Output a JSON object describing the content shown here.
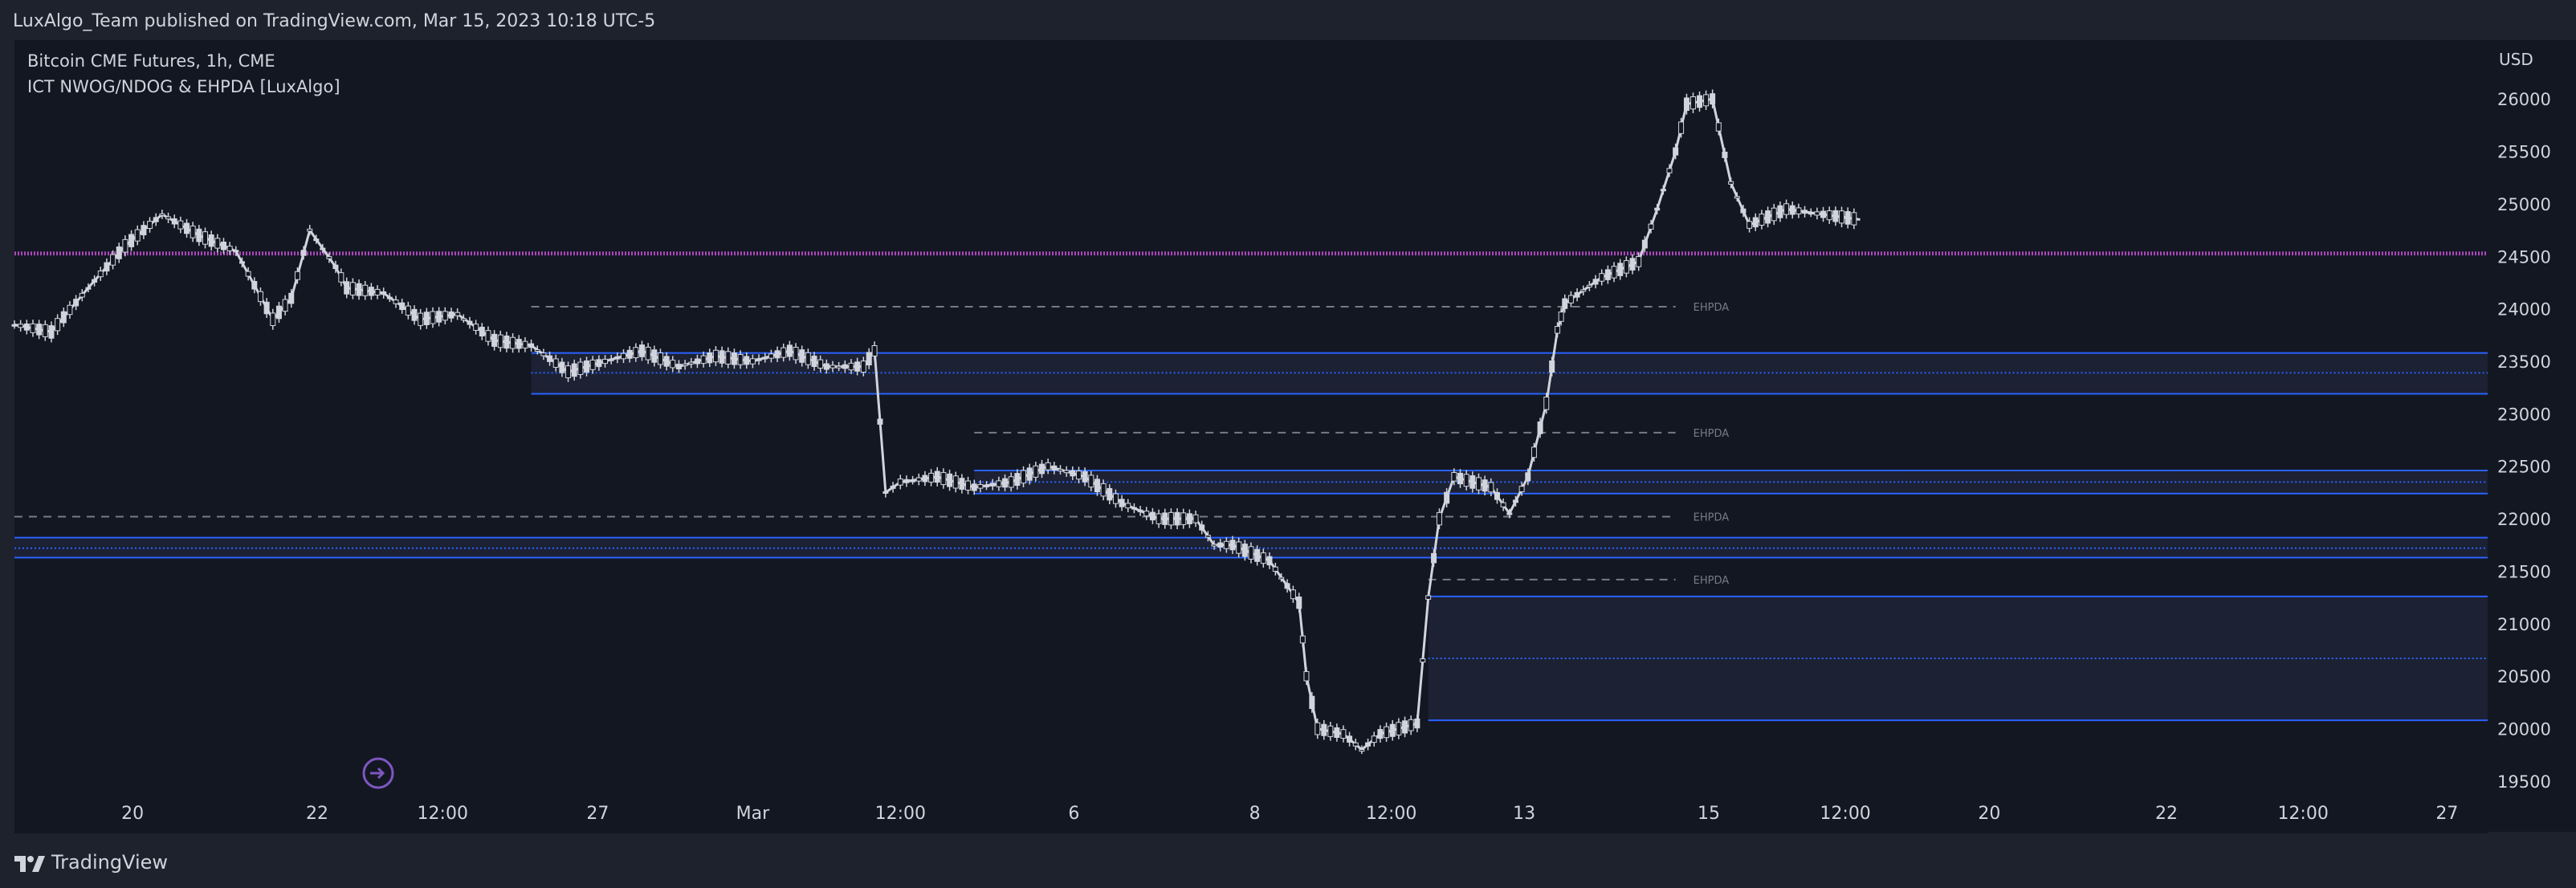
{
  "header": {
    "published": "LuxAlgo_Team published on TradingView.com, Mar 15, 2023 10:18 UTC-5"
  },
  "legend": {
    "symbol": "Bitcoin CME Futures, 1h, CME",
    "indicator": "ICT NWOG/NDOG & EHPDA [LuxAlgo]"
  },
  "footer": {
    "brand": "TradingView"
  },
  "colors": {
    "background": "#131722",
    "frame": "#1e222d",
    "text": "#d1d4dc",
    "candle": "#d1d4dc",
    "gap_line": "#2962ff",
    "magenta_line": "#ab47bc",
    "ehpda": "#787b86"
  },
  "icons": [
    "tradingview-logo-icon",
    "replay-icon"
  ],
  "chart_data": {
    "type": "candlestick",
    "currency": "USD",
    "ylim": [
      19400,
      26560
    ],
    "y_ticks": [
      19500,
      20000,
      20500,
      21000,
      21500,
      22000,
      22500,
      23000,
      23500,
      24000,
      24500,
      25000,
      25500,
      26000
    ],
    "x_ticks": [
      "20",
      "22",
      "12:00",
      "27",
      "Mar",
      "12:00",
      "6",
      "8",
      "12:00",
      "13",
      "15",
      "12:00",
      "20",
      "22",
      "12:00",
      "27"
    ],
    "price_path": [
      [
        0.0,
        23850
      ],
      [
        1.0,
        23780
      ],
      [
        2.0,
        24200
      ],
      [
        3.0,
        24600
      ],
      [
        4.0,
        24900
      ],
      [
        5.0,
        24700
      ],
      [
        6.0,
        24550
      ],
      [
        7.0,
        23900
      ],
      [
        7.5,
        24100
      ],
      [
        8.0,
        24750
      ],
      [
        8.7,
        24400
      ],
      [
        9.0,
        24200
      ],
      [
        10.0,
        24150
      ],
      [
        11.0,
        23900
      ],
      [
        12.0,
        23950
      ],
      [
        13.0,
        23700
      ],
      [
        14.0,
        23650
      ],
      [
        15.0,
        23400
      ],
      [
        16.0,
        23500
      ],
      [
        17.0,
        23600
      ],
      [
        18.0,
        23450
      ],
      [
        19.0,
        23550
      ],
      [
        20.0,
        23500
      ],
      [
        21.0,
        23600
      ],
      [
        22.0,
        23450
      ],
      [
        23.0,
        23450
      ],
      [
        23.3,
        23600
      ],
      [
        23.6,
        22250
      ],
      [
        24.0,
        22350
      ],
      [
        25.0,
        22400
      ],
      [
        26.0,
        22300
      ],
      [
        27.0,
        22350
      ],
      [
        28.0,
        22500
      ],
      [
        29.0,
        22400
      ],
      [
        30.0,
        22150
      ],
      [
        31.0,
        22000
      ],
      [
        32.0,
        22000
      ],
      [
        32.5,
        21750
      ],
      [
        33.0,
        21750
      ],
      [
        34.0,
        21600
      ],
      [
        34.8,
        21200
      ],
      [
        35.0,
        20500
      ],
      [
        35.3,
        20000
      ],
      [
        36.0,
        19950
      ],
      [
        36.5,
        19800
      ],
      [
        37.0,
        19950
      ],
      [
        38.0,
        20050
      ],
      [
        38.3,
        21250
      ],
      [
        38.6,
        22000
      ],
      [
        39.0,
        22400
      ],
      [
        40.0,
        22300
      ],
      [
        40.5,
        22050
      ],
      [
        41.0,
        22400
      ],
      [
        41.5,
        23100
      ],
      [
        41.8,
        23800
      ],
      [
        42.0,
        24050
      ],
      [
        43.0,
        24300
      ],
      [
        44.0,
        24450
      ],
      [
        44.5,
        24950
      ],
      [
        45.0,
        25500
      ],
      [
        45.3,
        25950
      ],
      [
        46.0,
        26000
      ],
      [
        46.5,
        25200
      ],
      [
        47.0,
        24800
      ],
      [
        48.0,
        24950
      ],
      [
        49.0,
        24900
      ],
      [
        50.0,
        24850
      ]
    ],
    "horizontal_lines": [
      {
        "label": "",
        "price": 24520,
        "style": "magenta-dotted",
        "from": 0.0,
        "to": 67.0
      },
      {
        "label": "",
        "price": 24535,
        "style": "magenta-dotted",
        "from": 0.0,
        "to": 67.0
      },
      {
        "label": "EHPDA",
        "price": 24020,
        "style": "dashed",
        "from": 14.0,
        "to": 45.0
      },
      {
        "label": "EHPDA",
        "price": 22820,
        "style": "dashed",
        "from": 26.0,
        "to": 45.0
      },
      {
        "label": "EHPDA",
        "price": 22020,
        "style": "dashed",
        "from": 0.0,
        "to": 45.0
      },
      {
        "label": "EHPDA",
        "price": 21420,
        "style": "dashed",
        "from": 38.3,
        "to": 45.0
      }
    ],
    "gaps": [
      {
        "top": 23580,
        "mid": 23390,
        "bottom": 23190,
        "from": 14.0,
        "to": 67.0
      },
      {
        "top": 22460,
        "mid": 22350,
        "bottom": 22240,
        "from": 26.0,
        "to": 67.0
      },
      {
        "top": 21820,
        "mid": 21720,
        "bottom": 21630,
        "from": 0.0,
        "to": 67.0
      },
      {
        "top": 21260,
        "mid": 20670,
        "bottom": 20080,
        "from": 38.3,
        "to": 67.0
      }
    ]
  }
}
